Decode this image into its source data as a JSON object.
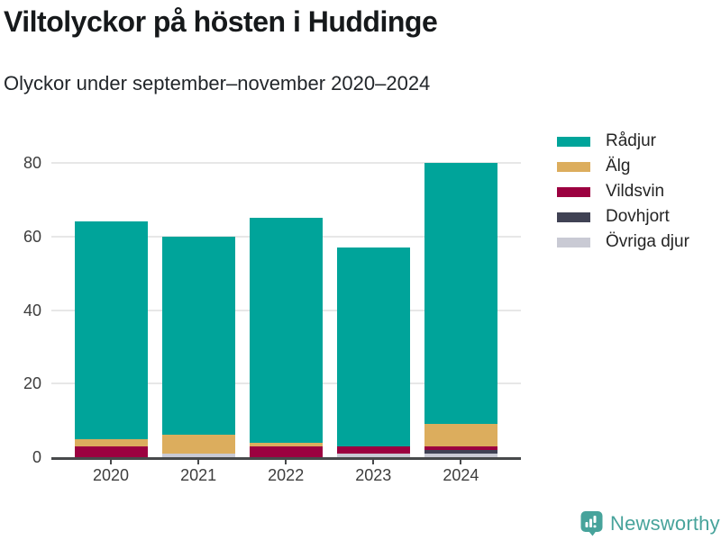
{
  "header": {
    "title": "Viltolyckor på hösten i Huddinge",
    "subtitle": "Olyckor under september–november 2020–2024"
  },
  "chart_data": {
    "type": "bar",
    "stacked": true,
    "title": "Viltolyckor på hösten i Huddinge",
    "subtitle": "Olyckor under september–november 2020–2024",
    "categories": [
      "2020",
      "2021",
      "2022",
      "2023",
      "2024"
    ],
    "series": [
      {
        "name": "Rådjur",
        "color": "#00a49a",
        "values": [
          59,
          54,
          61,
          54,
          71
        ]
      },
      {
        "name": "Älg",
        "color": "#dcad5d",
        "values": [
          2,
          5,
          1,
          0,
          6
        ]
      },
      {
        "name": "Vildsvin",
        "color": "#9c0140",
        "values": [
          3,
          0,
          3,
          2,
          1
        ]
      },
      {
        "name": "Dovhjort",
        "color": "#404254",
        "values": [
          0,
          0,
          0,
          0,
          1
        ]
      },
      {
        "name": "Övriga djur",
        "color": "#c9cad4",
        "values": [
          0,
          1,
          0,
          1,
          1
        ]
      }
    ],
    "totals": [
      64,
      60,
      65,
      57,
      80
    ],
    "stack_order_bottom_to_top": [
      "Övriga djur",
      "Dovhjort",
      "Vildsvin",
      "Älg",
      "Rådjur"
    ],
    "xlabel": "",
    "ylabel": "",
    "ylim": [
      0,
      80
    ],
    "yticks": [
      0,
      20,
      40,
      60,
      80
    ],
    "grid": "horizontal",
    "legend_position": "right"
  },
  "footer": {
    "brand": "Newsworthy",
    "brand_color": "#47a39b"
  },
  "colors": {
    "axis": "#47494b",
    "gridline": "#e7e7e7",
    "tick_label": "#3d3d3d",
    "title": "#16191b"
  }
}
